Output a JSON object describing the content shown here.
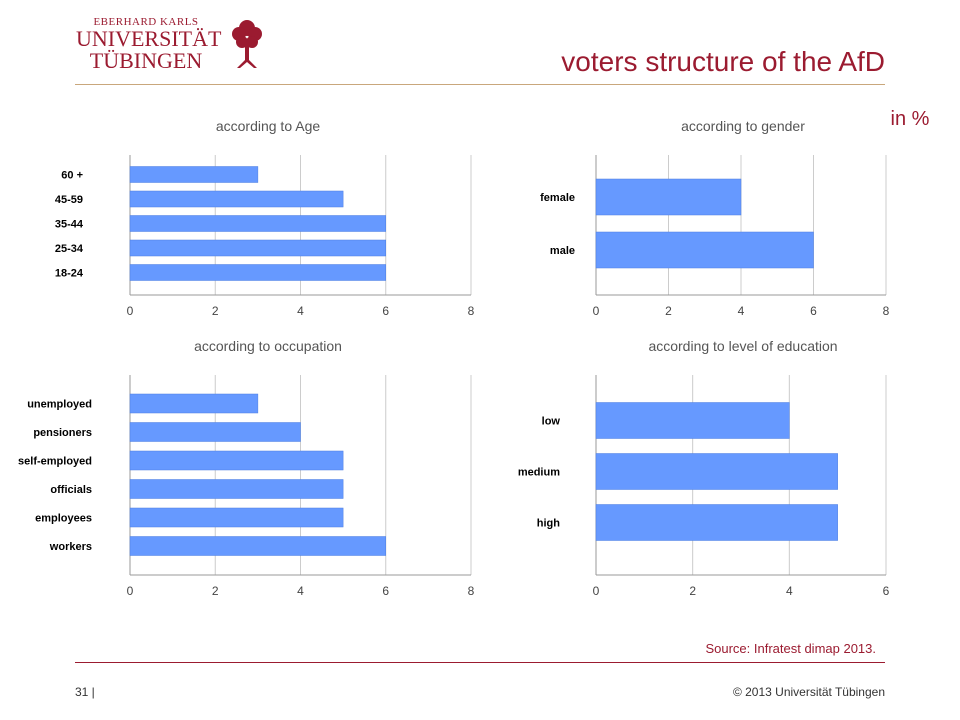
{
  "header": {
    "logo_line1": "EBERHARD KARLS",
    "logo_line2": "UNIVERSITÄT",
    "logo_line3": "TÜBINGEN",
    "title": "voters structure of the AfD",
    "unit": "in %"
  },
  "footer": {
    "source": "Source: Infratest dimap 2013.",
    "page_number": "31 |",
    "copyright": "© 2013 Universität Tübingen"
  },
  "colors": {
    "bar": "#6699ff",
    "brand": "#9b1b30",
    "grid": "#cccccc"
  },
  "chart_data": [
    {
      "type": "bar",
      "orientation": "horizontal",
      "title": "according to Age",
      "categories": [
        "60 +",
        "45-59",
        "35-44",
        "25-34",
        "18-24"
      ],
      "values": [
        3,
        5,
        6,
        6,
        6
      ],
      "xlim": [
        0,
        8
      ],
      "xticks": [
        "0",
        "2",
        "4",
        "6",
        "8"
      ],
      "grid": true
    },
    {
      "type": "bar",
      "orientation": "horizontal",
      "title": "according to gender",
      "categories": [
        "female",
        "male"
      ],
      "values": [
        4,
        6
      ],
      "xlim": [
        0,
        8
      ],
      "xticks": [
        "0",
        "2",
        "4",
        "6",
        "8"
      ],
      "grid": true
    },
    {
      "type": "bar",
      "orientation": "horizontal",
      "title": "according to occupation",
      "categories": [
        "unemployed",
        "pensioners",
        "self-employed",
        "officials",
        "employees",
        "workers"
      ],
      "values": [
        3,
        4,
        5,
        5,
        5,
        6
      ],
      "xlim": [
        0,
        8
      ],
      "xticks": [
        "0",
        "2",
        "4",
        "6",
        "8"
      ],
      "grid": true
    },
    {
      "type": "bar",
      "orientation": "horizontal",
      "title": "according to level of education",
      "categories": [
        "low",
        "medium",
        "high"
      ],
      "values": [
        4,
        5,
        5
      ],
      "xlim": [
        0,
        6
      ],
      "xticks": [
        "0",
        "2",
        "4",
        "6"
      ],
      "grid": true
    }
  ]
}
